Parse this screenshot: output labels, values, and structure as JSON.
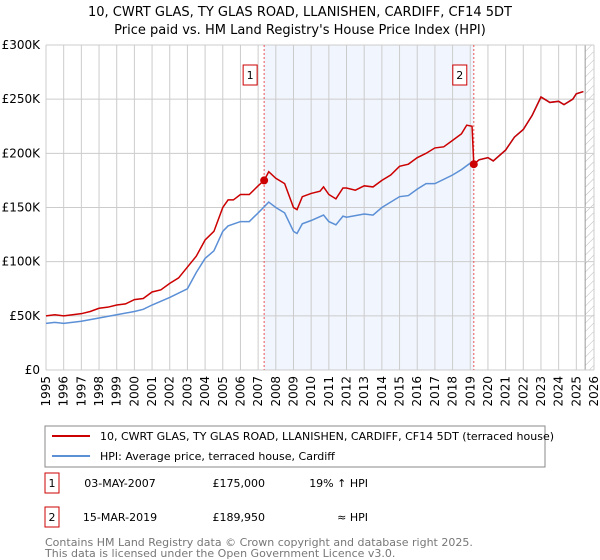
{
  "chart_data": {
    "type": "line",
    "title": "10, CWRT GLAS, TY GLAS ROAD, LLANISHEN, CARDIFF, CF14 5DT",
    "subtitle": "Price paid vs. HM Land Registry's House Price Index (HPI)",
    "xlim": [
      1995,
      2026
    ],
    "ylim": [
      0,
      300000
    ],
    "x_ticks": [
      "1995",
      "1996",
      "1997",
      "1998",
      "1999",
      "2000",
      "2001",
      "2002",
      "2003",
      "2004",
      "2005",
      "2006",
      "2007",
      "2008",
      "2009",
      "2010",
      "2011",
      "2012",
      "2013",
      "2014",
      "2015",
      "2016",
      "2017",
      "2018",
      "2019",
      "2020",
      "2021",
      "2022",
      "2023",
      "2024",
      "2025",
      "2026"
    ],
    "y_ticks": [
      {
        "v": 0,
        "label": "£0"
      },
      {
        "v": 50000,
        "label": "£50K"
      },
      {
        "v": 100000,
        "label": "£100K"
      },
      {
        "v": 150000,
        "label": "£150K"
      },
      {
        "v": 200000,
        "label": "£200K"
      },
      {
        "v": 250000,
        "label": "£250K"
      },
      {
        "v": 300000,
        "label": "£300K"
      }
    ],
    "grid": true,
    "shaded_range": [
      2007.34,
      2019.2
    ],
    "forecast_hatch_from": 2025.5,
    "series": [
      {
        "name": "10, CWRT GLAS, TY GLAS ROAD, LLANISHEN, CARDIFF, CF14 5DT (terraced house)",
        "color": "#cc0000",
        "x": [
          1995,
          1995.5,
          1996,
          1996.5,
          1997,
          1997.5,
          1998,
          1998.5,
          1999,
          1999.5,
          2000,
          2000.5,
          2001,
          2001.5,
          2002,
          2002.5,
          2003,
          2003.5,
          2004,
          2004.5,
          2005,
          2005.3,
          2005.6,
          2006,
          2006.5,
          2007,
          2007.34,
          2007.6,
          2008,
          2008.5,
          2009,
          2009.2,
          2009.5,
          2010,
          2010.5,
          2010.7,
          2011,
          2011.4,
          2011.8,
          2012,
          2012.5,
          2013,
          2013.5,
          2014,
          2014.5,
          2015,
          2015.5,
          2016,
          2016.5,
          2017,
          2017.5,
          2018,
          2018.5,
          2018.8,
          2019.1,
          2019.2,
          2019.5,
          2020,
          2020.3,
          2021,
          2021.5,
          2022,
          2022.5,
          2023,
          2023.5,
          2024,
          2024.3,
          2024.8,
          2025,
          2025.4
        ],
        "y": [
          50000,
          51000,
          50000,
          51000,
          52000,
          54000,
          57000,
          58000,
          60000,
          61000,
          65000,
          66000,
          72000,
          74000,
          80000,
          85000,
          95000,
          105000,
          120000,
          128000,
          150000,
          157000,
          157000,
          162000,
          162000,
          170000,
          175000,
          183000,
          177000,
          172000,
          150000,
          148000,
          160000,
          163000,
          165000,
          169000,
          162000,
          158000,
          168000,
          168000,
          166000,
          170000,
          169000,
          175000,
          180000,
          188000,
          190000,
          196000,
          200000,
          205000,
          206000,
          212000,
          218000,
          226000,
          225000,
          189950,
          194000,
          196000,
          193000,
          203000,
          215000,
          222000,
          235000,
          252000,
          247000,
          248000,
          245000,
          250000,
          255000,
          257000
        ]
      },
      {
        "name": "HPI: Average price, terraced house, Cardiff",
        "color": "#5b8fd6",
        "x": [
          1995,
          1995.5,
          1996,
          1997,
          1998,
          1999,
          2000,
          2000.5,
          2001,
          2002,
          2003,
          2003.5,
          2004,
          2004.5,
          2005,
          2005.3,
          2006,
          2006.5,
          2007,
          2007.6,
          2008,
          2008.5,
          2009,
          2009.2,
          2009.5,
          2010,
          2010.7,
          2011,
          2011.4,
          2011.8,
          2012,
          2013,
          2013.5,
          2014,
          2015,
          2015.5,
          2016,
          2016.5,
          2017,
          2018,
          2018.5,
          2019,
          2019.2,
          2019.5,
          2020,
          2020.3,
          2021,
          2021.5,
          2022,
          2022.5,
          2023,
          2023.5,
          2024,
          2024.3,
          2024.8,
          2025,
          2025.4
        ],
        "y": [
          43000,
          44000,
          43000,
          45000,
          48000,
          51000,
          54000,
          56000,
          60000,
          67000,
          75000,
          90000,
          103000,
          110000,
          128000,
          133000,
          137000,
          137000,
          145000,
          155000,
          150000,
          145000,
          128000,
          126000,
          135000,
          138000,
          143000,
          137000,
          134000,
          142000,
          141000,
          144000,
          143000,
          150000,
          160000,
          161000,
          167000,
          172000,
          172000,
          180000,
          185000,
          191000,
          190000,
          194000,
          196000,
          193000,
          203000,
          215000,
          222000,
          235000,
          252000,
          247000,
          248000,
          245000,
          250000,
          255000,
          257000
        ]
      }
    ],
    "sales": [
      {
        "label": "1",
        "date": "03-MAY-2007",
        "x": 2007.34,
        "price_value": 175000,
        "price": "£175,000",
        "hpi": "19% ↑ HPI"
      },
      {
        "label": "2",
        "date": "15-MAR-2019",
        "x": 2019.2,
        "price_value": 189950,
        "price": "£189,950",
        "hpi": "≈ HPI"
      }
    ]
  },
  "footer": {
    "line1": "Contains HM Land Registry data © Crown copyright and database right 2025.",
    "line2": "This data is licensed under the Open Government Licence v3.0."
  }
}
